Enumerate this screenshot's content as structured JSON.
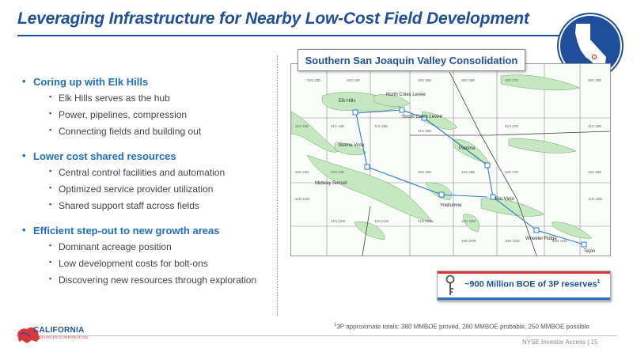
{
  "title": "Leveraging Infrastructure for Nearby Low-Cost Field Development",
  "sections": [
    {
      "heading": "Coring up with Elk Hills",
      "items": [
        "Elk Hills serves as the hub",
        "Power, pipelines, compression",
        "Connecting fields and building out"
      ]
    },
    {
      "heading": "Lower cost shared resources",
      "items": [
        "Central control facilities and automation",
        "Optimized service provider utilization",
        "Shared support staff across fields"
      ]
    },
    {
      "heading": "Efficient step-out to new growth areas",
      "items": [
        "Dominant acreage position",
        "Low development costs for bolt-ons",
        "Discovering new resources through exploration"
      ]
    }
  ],
  "map": {
    "header": "Southern San Joaquin Valley Consolidation",
    "fields": [
      "Elk Hills",
      "North Coles Levee",
      "South Coles Levee",
      "Buena Vista",
      "Paloma",
      "Midway Sunset",
      "Rio Viejo",
      "Yowlumne",
      "Wheeler Ridge",
      "Tejon"
    ],
    "grid_labels": [
      "30S 23E",
      "30S 24E",
      "30S 25E",
      "30S 26E",
      "30S 27E",
      "30S 28E",
      "31S 23E",
      "31S 24E",
      "31S 25E",
      "31S 26E",
      "31S 27E",
      "31S 28E",
      "32S 23E",
      "32S 24E",
      "32S 25E",
      "32S 26E",
      "32S 27E",
      "32S 28E",
      "11N 23W",
      "11N 22W",
      "11N 21W",
      "11N 20W",
      "11N 19W",
      "11N 18W",
      "10N 20W",
      "10N 19W",
      "10N 18W"
    ]
  },
  "reserves": {
    "text": "~900 Million BOE of 3P reserves",
    "footnote_marker": "1"
  },
  "footnote": {
    "marker": "1",
    "text": "3P approximate totals: 380 MMBOE proved, 280 MMBOE probable, 250 MMBOE possible"
  },
  "footer": {
    "text": "NYSE Investor Access  |  15"
  },
  "logo": {
    "name": "CALIFORNIA",
    "sub": "RESOURCES CORPORATION"
  },
  "colors": {
    "brand_blue": "#1f4f9a",
    "bullet_blue": "#1f6fc4",
    "accent_red": "#d9383a",
    "field_green": "#c5e8c0",
    "line_blue": "#2b7bc8"
  }
}
